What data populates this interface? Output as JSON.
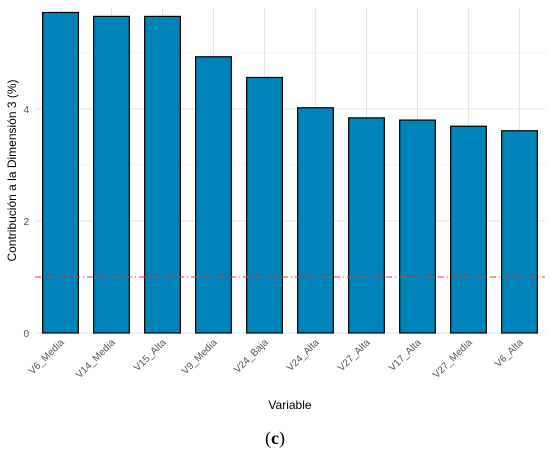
{
  "caption": {
    "prefix": "(",
    "letter": "c",
    "suffix": ")"
  },
  "chart_data": {
    "type": "bar",
    "xlabel": "Variable",
    "ylabel": "Contribución a la Dimensión 3 (%)",
    "categories": [
      "V6_Media",
      "V14_Media",
      "V15_Alta",
      "V9_Media",
      "V24_Baja",
      "V24_Alta",
      "V27_Alta",
      "V17_Alta",
      "V27_Media",
      "V6_Alta"
    ],
    "values": [
      5.72,
      5.65,
      5.65,
      4.93,
      4.56,
      4.02,
      3.84,
      3.8,
      3.69,
      3.61
    ],
    "ylim": [
      0,
      5.8
    ],
    "yticks": [
      0,
      2,
      4
    ],
    "reference_line": {
      "value": 1.0,
      "color": "#e8392d",
      "style": "dashed"
    },
    "bar_color": "#0083b9",
    "grid": true
  }
}
